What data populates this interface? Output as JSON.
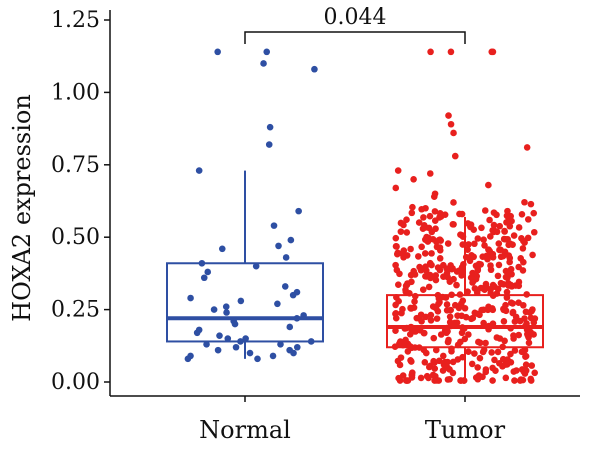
{
  "chart_data": {
    "type": "box",
    "categories": [
      "Normal",
      "Tumor"
    ],
    "ylabel": "HOXA2 expression",
    "ylim": [
      -0.02,
      1.25
    ],
    "yticks": [
      "0.00",
      "0.25",
      "0.50",
      "0.75",
      "1.00",
      "1.25"
    ],
    "ytick_values": [
      0,
      0.25,
      0.5,
      0.75,
      1.0,
      1.25
    ],
    "comparison": {
      "label": "0.044",
      "between": [
        "Normal",
        "Tumor"
      ],
      "y": 1.2
    },
    "colors": {
      "Normal": "#2e4fa3",
      "Tumor": "#e8201e"
    },
    "boxes": [
      {
        "category": "Normal",
        "q1": 0.14,
        "median": 0.22,
        "q3": 0.41,
        "whisker_low": 0.08,
        "whisker_high": 0.73
      },
      {
        "category": "Tumor",
        "q1": 0.12,
        "median": 0.19,
        "q3": 0.3,
        "whisker_low": 0.01,
        "whisker_high": 0.57
      }
    ],
    "points": {
      "Normal": [
        1.14,
        1.14,
        1.1,
        1.08,
        0.88,
        0.82,
        0.73,
        0.59,
        0.54,
        0.49,
        0.47,
        0.46,
        0.43,
        0.41,
        0.4,
        0.38,
        0.36,
        0.33,
        0.31,
        0.3,
        0.29,
        0.28,
        0.27,
        0.26,
        0.25,
        0.24,
        0.23,
        0.22,
        0.21,
        0.2,
        0.19,
        0.18,
        0.17,
        0.16,
        0.15,
        0.15,
        0.14,
        0.14,
        0.13,
        0.13,
        0.12,
        0.12,
        0.11,
        0.11,
        0.1,
        0.1,
        0.09,
        0.09,
        0.08,
        0.08
      ],
      "Tumor_outliers": [
        1.14,
        1.14,
        1.14,
        1.14,
        0.92,
        0.89,
        0.86,
        0.81,
        0.78,
        0.73,
        0.72,
        0.7,
        0.68,
        0.67,
        0.65,
        0.64,
        0.62,
        0.6,
        0.59,
        0.58
      ],
      "Tumor_count": 480
    }
  }
}
